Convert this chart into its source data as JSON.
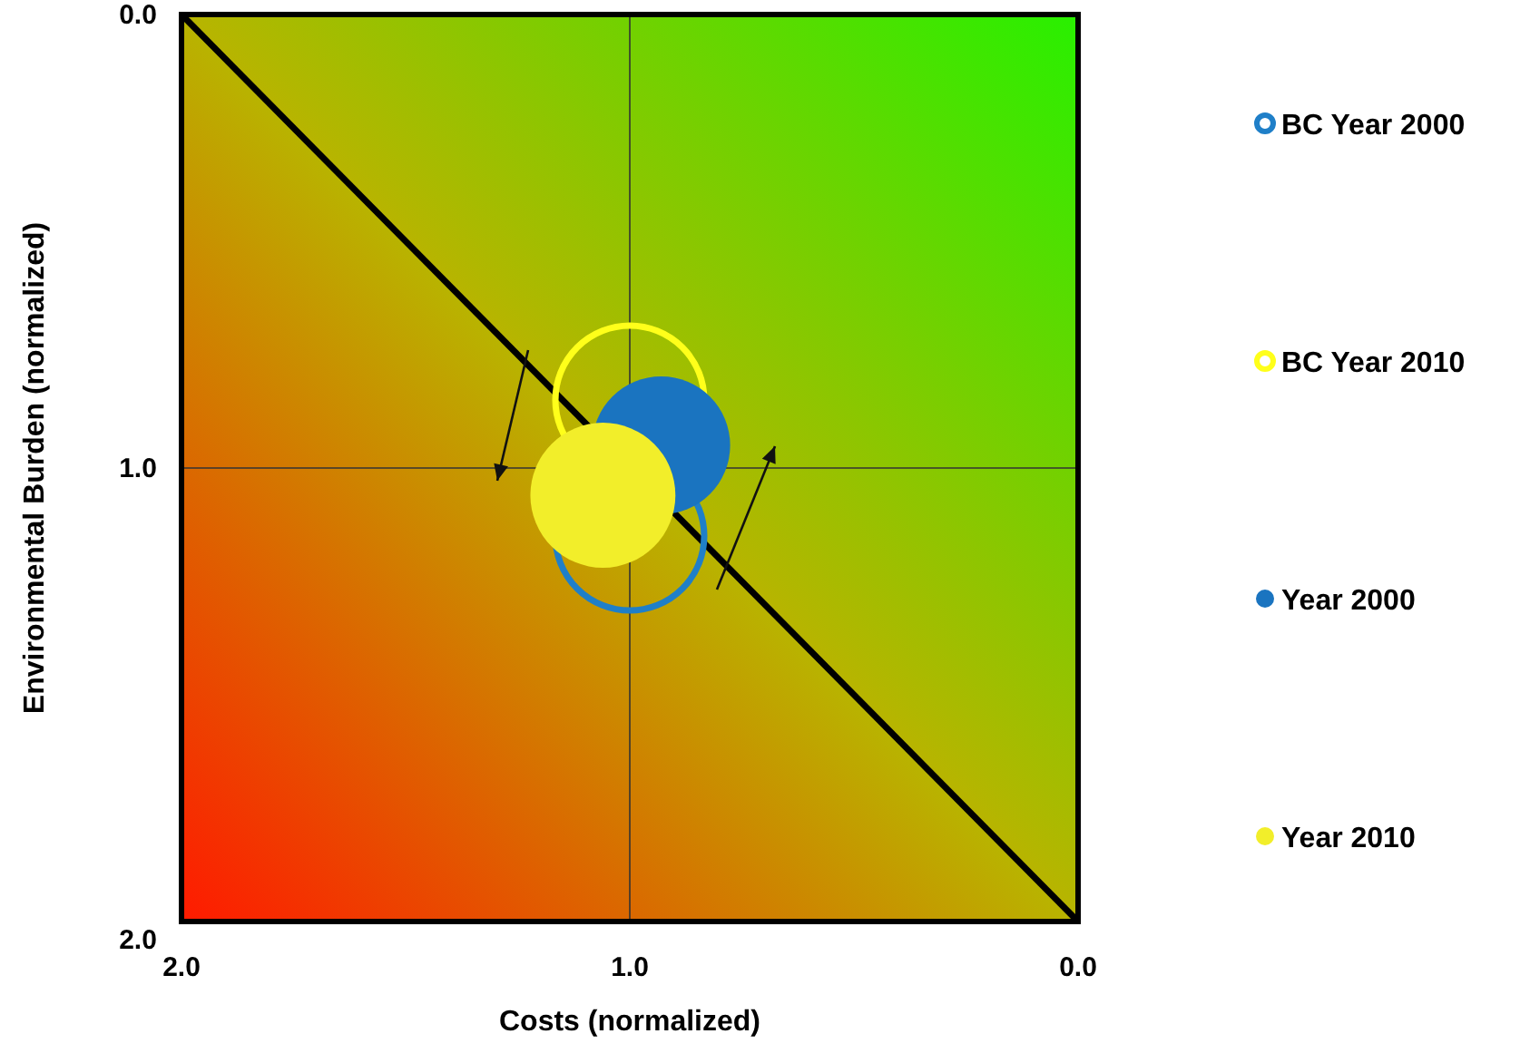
{
  "chart_data": {
    "type": "bubble",
    "xlabel": "Costs (normalized)",
    "ylabel": "Environmental Burden (normalized)",
    "xlim": [
      2.0,
      0.0
    ],
    "xticks": [
      {
        "value": 2,
        "label": "2.0"
      },
      {
        "value": 1,
        "label": "1.0"
      },
      {
        "value": 0,
        "label": "0.0"
      }
    ],
    "ylim": [
      2.0,
      0.0
    ],
    "yticks": [
      {
        "value": 2,
        "label": "2.0"
      },
      {
        "value": 1,
        "label": "1.0"
      },
      {
        "value": 0,
        "label": "0.0"
      }
    ],
    "grid": true,
    "legend": "right",
    "series": [
      {
        "name": "BC Year 2000",
        "color": "#1f7fc8",
        "x": [
          1.0
        ],
        "values": [
          1.15
        ],
        "sizes": [
          1
        ]
      },
      {
        "name": "BC Year 2010",
        "color": "#ffff1a",
        "x": [
          1.0
        ],
        "values": [
          0.85
        ],
        "sizes": [
          1
        ]
      },
      {
        "name": "Year 2000",
        "color": "#1a74c0",
        "marker": "circle",
        "x": [
          0.93
        ],
        "values": [
          0.95
        ],
        "sizes": [
          0.86
        ]
      },
      {
        "name": "Year 2010",
        "color": "#f2ee2a",
        "marker": "circle",
        "x": [
          1.06
        ],
        "values": [
          1.06
        ],
        "sizes": [
          0.95
        ]
      },
      {
        "type": "line",
        "color": "#000000",
        "x": [
          2.0,
          0.0
        ],
        "values": [
          0.0,
          2.0
        ],
        "marker": "none"
      }
    ]
  }
}
